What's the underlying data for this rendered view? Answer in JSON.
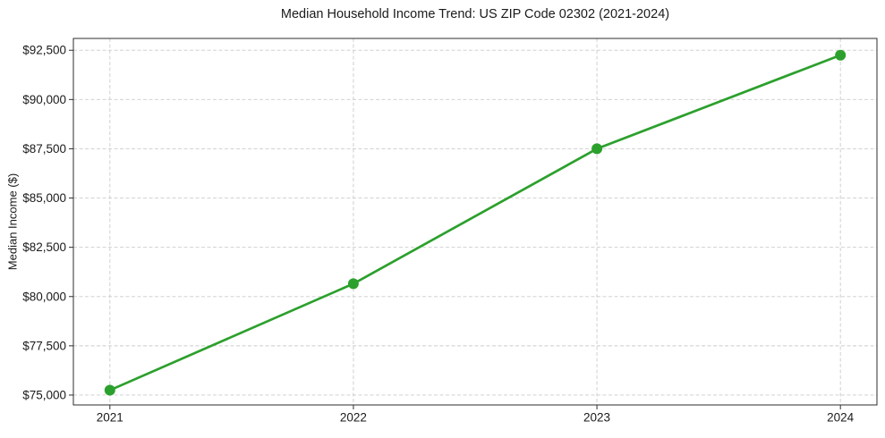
{
  "chart_data": {
    "type": "line",
    "title": "Median Household Income Trend: US ZIP Code 02302 (2021-2024)",
    "xlabel": "",
    "ylabel": "Median Income ($)",
    "x": [
      2021,
      2022,
      2023,
      2024
    ],
    "x_tick_labels": [
      "2021",
      "2022",
      "2023",
      "2024"
    ],
    "values": [
      75250,
      80650,
      87500,
      92250
    ],
    "series_name": "Median Household Income",
    "y_tick_values": [
      75000,
      77500,
      80000,
      82500,
      85000,
      87500,
      90000,
      92500
    ],
    "y_tick_labels": [
      "$75,000",
      "$77,500",
      "$80,000",
      "$82,500",
      "$85,000",
      "$87,500",
      "$90,000",
      "$92,500"
    ],
    "xlim": [
      2020.85,
      2024.15
    ],
    "ylim": [
      74500,
      93100
    ],
    "grid": true,
    "grid_style": "dashed",
    "legend": "none",
    "colors": {
      "line": "#2ca02c",
      "marker": "#2ca02c",
      "grid": "#cbcbcb",
      "axis": "#2e2e2e",
      "text": "#1a1a1a",
      "background": "#ffffff"
    },
    "marker": "circle",
    "marker_radius": 6,
    "line_width": 2.7
  }
}
